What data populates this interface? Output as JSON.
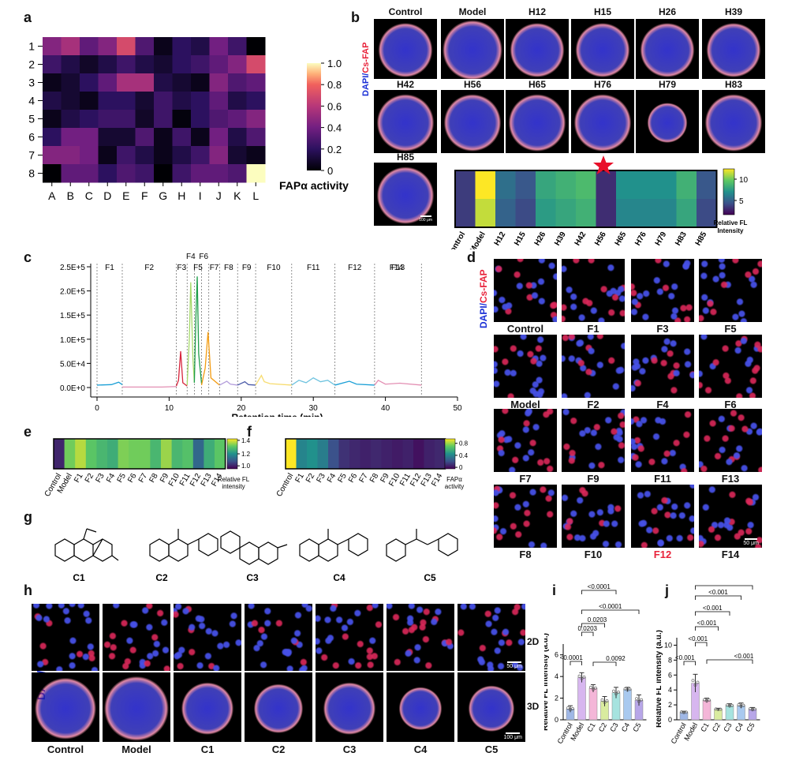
{
  "panels": {
    "a": "a",
    "b": "b",
    "c": "c",
    "d": "d",
    "e": "e",
    "f": "f",
    "g": "g",
    "h": "h",
    "i": "i",
    "j": "j"
  },
  "colors": {
    "dapi": "#1a2fd6",
    "csfap": "#e8223a",
    "bar_sky": "#1a9fd6",
    "bar_pink": "#e38fb3"
  },
  "stain_labels": {
    "dapi": "DAPI/",
    "csfap": "Cs-FAP"
  },
  "panel_a": {
    "rows": [
      "1",
      "2",
      "3",
      "4",
      "5",
      "6",
      "7",
      "8"
    ],
    "cols": [
      "A",
      "B",
      "C",
      "D",
      "E",
      "F",
      "G",
      "H",
      "I",
      "J",
      "K",
      "L"
    ],
    "colorbar_label": "FAPα activity",
    "colorbar_ticks": [
      "0",
      "0.2",
      "0.4",
      "0.6",
      "0.8",
      "1.0"
    ],
    "chart_data": {
      "type": "heatmap",
      "rows": [
        "1",
        "2",
        "3",
        "4",
        "5",
        "6",
        "7",
        "8"
      ],
      "cols": [
        "A",
        "B",
        "C",
        "D",
        "E",
        "F",
        "G",
        "H",
        "I",
        "J",
        "K",
        "L"
      ],
      "values": [
        [
          0.45,
          0.55,
          0.35,
          0.45,
          0.7,
          0.3,
          0.05,
          0.2,
          0.15,
          0.4,
          0.25,
          0.0
        ],
        [
          0.25,
          0.15,
          0.08,
          0.15,
          0.25,
          0.15,
          0.1,
          0.2,
          0.25,
          0.35,
          0.45,
          0.7
        ],
        [
          0.05,
          0.1,
          0.2,
          0.35,
          0.55,
          0.55,
          0.15,
          0.1,
          0.05,
          0.45,
          0.3,
          0.35
        ],
        [
          0.15,
          0.1,
          0.05,
          0.2,
          0.2,
          0.1,
          0.25,
          0.15,
          0.2,
          0.35,
          0.15,
          0.2
        ],
        [
          0.05,
          0.15,
          0.2,
          0.25,
          0.25,
          0.08,
          0.25,
          0.02,
          0.2,
          0.3,
          0.35,
          0.45
        ],
        [
          0.2,
          0.4,
          0.4,
          0.1,
          0.1,
          0.3,
          0.05,
          0.25,
          0.05,
          0.4,
          0.15,
          0.3
        ],
        [
          0.45,
          0.45,
          0.4,
          0.05,
          0.25,
          0.15,
          0.05,
          0.15,
          0.25,
          0.45,
          0.1,
          0.05
        ],
        [
          0.0,
          0.35,
          0.35,
          0.2,
          0.3,
          0.25,
          0.0,
          0.25,
          0.35,
          0.35,
          0.3,
          1.0
        ]
      ],
      "range": [
        0,
        1
      ]
    }
  },
  "panel_b": {
    "images_row1": [
      "Control",
      "Model",
      "H12",
      "H15",
      "H26",
      "H39"
    ],
    "images_row2": [
      "H42",
      "H56",
      "H65",
      "H76",
      "H79",
      "H83"
    ],
    "images_row3": [
      "H85"
    ],
    "scale_bar": "100 μm",
    "heat_categories": [
      "Control",
      "Model",
      "H12",
      "H15",
      "H26",
      "H39",
      "H42",
      "H56",
      "H65",
      "H76",
      "H79",
      "H83",
      "H85"
    ],
    "colorbar_ticks": [
      "5",
      "10"
    ],
    "colorbar_label_1": "Relative FL",
    "colorbar_label_2": "Intensity",
    "chart_data": {
      "type": "heatmap",
      "categories": [
        "Control",
        "Model",
        "H12",
        "H15",
        "H26",
        "H39",
        "H42",
        "H56",
        "H65",
        "H76",
        "H79",
        "H83",
        "H85"
      ],
      "rows": 2,
      "values": [
        [
          3,
          12,
          5,
          4,
          7.5,
          8,
          8.5,
          2.5,
          6.5,
          6.5,
          6.5,
          8,
          4
        ],
        [
          3,
          11,
          4.5,
          3.5,
          7,
          7.5,
          8,
          2.5,
          6,
          6,
          6,
          7.5,
          3.5
        ]
      ],
      "range": [
        1,
        12
      ]
    }
  },
  "panel_c": {
    "xlabel": "Retention time (min)",
    "xticks": [
      "0",
      "10",
      "20",
      "30",
      "40",
      "50"
    ],
    "yticks": [
      "0.0E+0",
      "5.0E+4",
      "1.0E+5",
      "1.5E+5",
      "2.0E+5",
      "2.5E+5"
    ],
    "fractions": [
      "F1",
      "F2",
      "F3",
      "F4",
      "F5",
      "F6",
      "F7",
      "F8",
      "F9",
      "F10",
      "F11",
      "F12",
      "F13",
      "F14"
    ],
    "chart_data": {
      "type": "line",
      "xlim": [
        0,
        50
      ],
      "ylim": [
        0,
        250000
      ],
      "fraction_boundaries": [
        0,
        3.5,
        11,
        12.5,
        13.5,
        14.5,
        15.5,
        17,
        19.5,
        22,
        27,
        33,
        38.5,
        45
      ],
      "segments": [
        {
          "color": "#1a9fd6",
          "x": [
            0,
            2,
            3,
            3.5
          ],
          "y": [
            5000,
            6000,
            11000,
            6000
          ]
        },
        {
          "color": "#e38fb3",
          "x": [
            3.5,
            6,
            9,
            11
          ],
          "y": [
            1000,
            1000,
            1000,
            2000
          ]
        },
        {
          "color": "#d7263d",
          "x": [
            11,
            11.3,
            11.6,
            11.9,
            12.5
          ],
          "y": [
            3000,
            15000,
            75000,
            10000,
            3000
          ]
        },
        {
          "color": "#a6d96a",
          "x": [
            12.5,
            12.8,
            13.0,
            13.3,
            13.5
          ],
          "y": [
            5000,
            100000,
            218000,
            60000,
            10000
          ]
        },
        {
          "color": "#1e9e4a",
          "x": [
            13.5,
            13.7,
            13.9,
            14.1,
            14.5
          ],
          "y": [
            10000,
            140000,
            230000,
            70000,
            8000
          ]
        },
        {
          "color": "#f39c12",
          "x": [
            14.5,
            15.0,
            15.4,
            15.8,
            17
          ],
          "y": [
            5000,
            40000,
            115000,
            20000,
            5000
          ]
        },
        {
          "color": "#b39ddb",
          "x": [
            17,
            18,
            18.5,
            19.5
          ],
          "y": [
            5000,
            13000,
            7000,
            5000
          ]
        },
        {
          "color": "#4a5aa8",
          "x": [
            19.5,
            20.5,
            21,
            22
          ],
          "y": [
            5000,
            12000,
            6000,
            5000
          ]
        },
        {
          "color": "#f7dc6f",
          "x": [
            22,
            22.8,
            23.2,
            24,
            27
          ],
          "y": [
            5000,
            25000,
            12000,
            8000,
            5000
          ]
        },
        {
          "color": "#6fc3df",
          "x": [
            27,
            28,
            29,
            30,
            31,
            32,
            33
          ],
          "y": [
            5000,
            15000,
            10000,
            20000,
            12000,
            15000,
            5000
          ]
        },
        {
          "color": "#1a9fd6",
          "x": [
            33,
            35,
            36,
            38.5
          ],
          "y": [
            5000,
            13000,
            7000,
            5000
          ]
        },
        {
          "color": "#e38fb3",
          "x": [
            38.5,
            39,
            40,
            42,
            45
          ],
          "y": [
            5000,
            15000,
            7000,
            9000,
            5000
          ]
        }
      ]
    }
  },
  "panel_d": {
    "rows": [
      [
        "Control",
        "F1",
        "F3",
        "F5"
      ],
      [
        "Model",
        "F2",
        "F4",
        "F6"
      ],
      [
        "F7",
        "F9",
        "F11",
        "F13"
      ],
      [
        "F8",
        "F10",
        "F12",
        "F14"
      ]
    ],
    "highlight": "F12",
    "scale_bar": "50 μm"
  },
  "panel_e": {
    "categories": [
      "Control",
      "Model",
      "F1",
      "F2",
      "F3",
      "F4",
      "F5",
      "F6",
      "F7",
      "F8",
      "F9",
      "F10",
      "F11",
      "F12",
      "F13",
      "F14"
    ],
    "colorbar_ticks": [
      "1.0",
      "1.2",
      "1.4"
    ],
    "colorbar_label_1": "Relative FL",
    "colorbar_label_2": "intensity",
    "chart_data": {
      "type": "heatmap",
      "values": [
        1.05,
        1.35,
        1.4,
        1.33,
        1.3,
        1.28,
        1.36,
        1.35,
        1.35,
        1.3,
        1.38,
        1.3,
        1.32,
        1.15,
        1.28,
        1.33
      ],
      "range": [
        1.0,
        1.45
      ]
    }
  },
  "panel_f": {
    "categories": [
      "Control",
      "F1",
      "F2",
      "F3",
      "F4",
      "F5",
      "F6",
      "F7",
      "F8",
      "F9",
      "F10",
      "F11",
      "F12",
      "F13",
      "F14"
    ],
    "colorbar_ticks": [
      "0",
      "0.4",
      "0.8"
    ],
    "colorbar_label_1": "FAPα",
    "colorbar_label_2": "activity",
    "chart_data": {
      "type": "heatmap",
      "values": [
        1.0,
        0.45,
        0.5,
        0.42,
        0.25,
        0.15,
        0.12,
        0.1,
        0.12,
        0.1,
        0.08,
        0.1,
        0.05,
        0.1,
        0.12
      ],
      "range": [
        0,
        1.0
      ]
    }
  },
  "panel_g": {
    "compounds": [
      "C1",
      "C2",
      "C3",
      "C4",
      "C5"
    ]
  },
  "panel_h": {
    "cols": [
      "Control",
      "Model",
      "C1",
      "C2",
      "C3",
      "C4",
      "C5"
    ],
    "row_labels": [
      "2D",
      "3D"
    ],
    "scale_bar_2d": "50 μm",
    "scale_bar_3d": "100 μm"
  },
  "panel_i": {
    "ylabel": "Relative FL intensity (a.u.)",
    "yticks": [
      "0",
      "2",
      "4",
      "6"
    ],
    "pvalues": [
      "<0.0001",
      "0.0203",
      "<0.0001",
      "0.0203",
      "<0.0001",
      "0.0092"
    ],
    "chart_data": {
      "type": "bar",
      "categories": [
        "Control",
        "Model",
        "C1",
        "C2",
        "C3",
        "C4",
        "C5"
      ],
      "values": [
        1.0,
        3.9,
        2.9,
        1.7,
        2.5,
        2.8,
        1.8
      ],
      "errors": [
        0.3,
        0.45,
        0.35,
        0.45,
        0.5,
        0.2,
        0.5
      ],
      "colors": [
        "#9fb7e6",
        "#d7b6ef",
        "#f4b6d8",
        "#d9ec9f",
        "#a6e3df",
        "#a9c9ef",
        "#b7a6e8"
      ],
      "ylim": [
        0,
        7
      ]
    }
  },
  "panel_j": {
    "ylabel": "Relative FL intensity (a.u.)",
    "yticks": [
      "0",
      "2",
      "4",
      "6",
      "8",
      "10"
    ],
    "pvalues": [
      "<0.001",
      "<0.001",
      "<0.001",
      "<0.001",
      "<0.001",
      "<0.001",
      "<0.001"
    ],
    "chart_data": {
      "type": "bar",
      "categories": [
        "Control",
        "Model",
        "C1",
        "C2",
        "C3",
        "C4",
        "C5"
      ],
      "values": [
        1.0,
        4.9,
        2.6,
        1.4,
        1.9,
        1.9,
        1.4
      ],
      "errors": [
        0.15,
        1.2,
        0.3,
        0.15,
        0.25,
        0.35,
        0.25
      ],
      "colors": [
        "#9fb7e6",
        "#d7b6ef",
        "#f4b6d8",
        "#d9ec9f",
        "#a6e3df",
        "#a9c9ef",
        "#b7a6e8"
      ],
      "ylim": [
        0,
        11
      ]
    }
  }
}
